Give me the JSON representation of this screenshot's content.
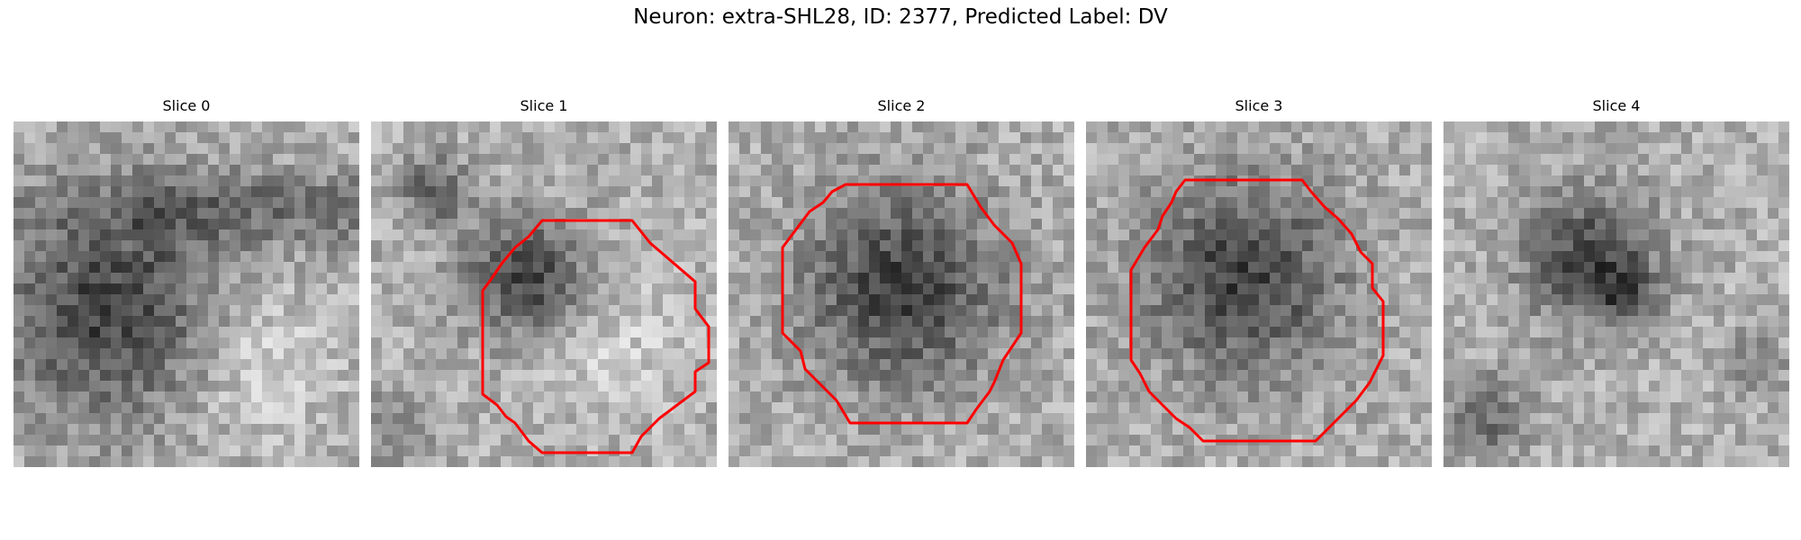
{
  "figure": {
    "title": "Neuron: extra-SHL28, ID: 2377, Predicted Label: DV"
  },
  "panels": [
    {
      "title": "Slice 0",
      "has_contour": false,
      "dark_center": [
        0.28,
        0.55
      ],
      "dark_spread": 0.22
    },
    {
      "title": "Slice 1",
      "has_contour": true,
      "dark_center": [
        0.45,
        0.45
      ],
      "dark_spread": 0.12
    },
    {
      "title": "Slice 2",
      "has_contour": true,
      "dark_center": [
        0.5,
        0.48
      ],
      "dark_spread": 0.2
    },
    {
      "title": "Slice 3",
      "has_contour": true,
      "dark_center": [
        0.45,
        0.45
      ],
      "dark_spread": 0.2
    },
    {
      "title": "Slice 4",
      "has_contour": false,
      "dark_center": [
        0.42,
        0.4
      ],
      "dark_spread": 0.13
    }
  ],
  "contour_color": "#ff0000"
}
